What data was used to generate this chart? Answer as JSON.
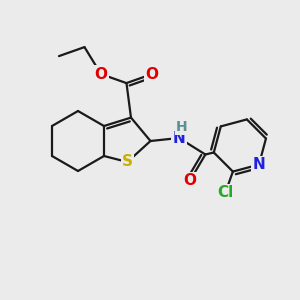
{
  "bg_color": "#ebebeb",
  "bond_color": "#1a1a1a",
  "bond_width": 1.6,
  "S_color": "#c8b000",
  "N_color": "#5a9090",
  "O_color": "#e00000",
  "Cl_color": "#22aa22",
  "N_ring_color": "#2020dd",
  "font_size": 11,
  "small_font_size": 10,
  "xlim": [
    0,
    10
  ],
  "ylim": [
    0,
    10
  ]
}
